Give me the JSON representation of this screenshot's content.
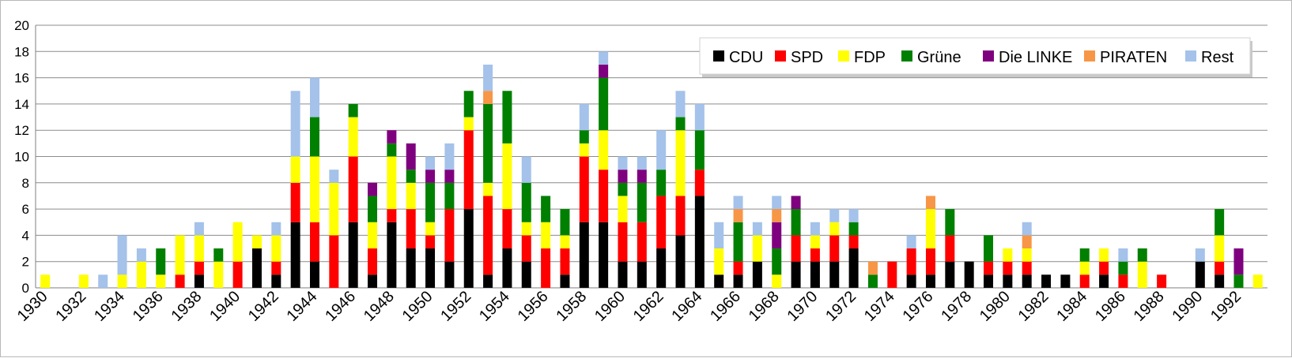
{
  "chart_data": {
    "type": "bar",
    "stacked": true,
    "title": "",
    "xlabel": "",
    "ylabel": "",
    "ylim": [
      0,
      20
    ],
    "yticks": [
      0,
      2,
      4,
      6,
      8,
      10,
      12,
      14,
      16,
      18,
      20
    ],
    "grid": "horizontal",
    "legend_position": "top-right",
    "categories": [
      1930,
      1931,
      1932,
      1933,
      1934,
      1935,
      1936,
      1937,
      1938,
      1939,
      1940,
      1941,
      1942,
      1943,
      1944,
      1945,
      1946,
      1947,
      1948,
      1949,
      1950,
      1951,
      1952,
      1953,
      1954,
      1955,
      1956,
      1957,
      1958,
      1959,
      1960,
      1961,
      1962,
      1963,
      1964,
      1965,
      1966,
      1967,
      1968,
      1969,
      1970,
      1971,
      1972,
      1973,
      1974,
      1975,
      1976,
      1977,
      1978,
      1979,
      1980,
      1981,
      1982,
      1983,
      1984,
      1985,
      1986,
      1987,
      1988,
      1989,
      1990,
      1991,
      1992,
      1993
    ],
    "xtick_labels": [
      "1930",
      "1932",
      "1934",
      "1936",
      "1938",
      "1940",
      "1942",
      "1944",
      "1946",
      "1948",
      "1950",
      "1952",
      "1954",
      "1956",
      "1958",
      "1960",
      "1962",
      "1964",
      "1966",
      "1968",
      "1970",
      "1972",
      "1974",
      "1976",
      "1978",
      "1980",
      "1982",
      "1984",
      "1986",
      "1988",
      "1990",
      "1992"
    ],
    "series": [
      {
        "name": "CDU",
        "color": "#000000",
        "values": [
          0,
          0,
          0,
          0,
          0,
          0,
          0,
          0,
          1,
          0,
          0,
          3,
          1,
          5,
          2,
          0,
          5,
          1,
          5,
          3,
          3,
          2,
          6,
          1,
          3,
          2,
          0,
          1,
          5,
          5,
          2,
          2,
          3,
          4,
          7,
          1,
          1,
          2,
          0,
          2,
          2,
          2,
          3,
          0,
          0,
          1,
          1,
          2,
          2,
          1,
          1,
          1,
          1,
          1,
          0,
          1,
          0,
          0,
          0,
          0,
          2,
          1,
          0,
          0
        ]
      },
      {
        "name": "SPD",
        "color": "#ff0000",
        "values": [
          0,
          0,
          0,
          0,
          0,
          0,
          0,
          1,
          1,
          0,
          2,
          0,
          1,
          3,
          3,
          4,
          5,
          2,
          1,
          3,
          1,
          4,
          6,
          6,
          3,
          2,
          3,
          2,
          5,
          4,
          3,
          3,
          4,
          3,
          2,
          0,
          1,
          0,
          0,
          2,
          1,
          2,
          1,
          0,
          2,
          2,
          2,
          2,
          0,
          1,
          1,
          1,
          0,
          0,
          1,
          1,
          1,
          0,
          1,
          0,
          0,
          1,
          0,
          0
        ]
      },
      {
        "name": "FDP",
        "color": "#ffff00",
        "values": [
          1,
          0,
          1,
          0,
          1,
          2,
          1,
          3,
          2,
          2,
          3,
          1,
          2,
          2,
          5,
          4,
          3,
          2,
          4,
          2,
          1,
          0,
          1,
          1,
          5,
          1,
          2,
          1,
          1,
          3,
          2,
          0,
          0,
          5,
          0,
          2,
          0,
          2,
          1,
          0,
          1,
          1,
          0,
          0,
          0,
          0,
          3,
          0,
          0,
          0,
          1,
          1,
          0,
          0,
          1,
          1,
          0,
          2,
          0,
          0,
          0,
          2,
          0,
          1
        ]
      },
      {
        "name": "Grüne",
        "color": "#008000",
        "values": [
          0,
          0,
          0,
          0,
          0,
          0,
          2,
          0,
          0,
          1,
          0,
          0,
          0,
          0,
          3,
          0,
          1,
          2,
          1,
          1,
          3,
          2,
          2,
          6,
          4,
          3,
          2,
          2,
          1,
          4,
          1,
          3,
          2,
          1,
          3,
          0,
          3,
          0,
          2,
          2,
          0,
          0,
          1,
          1,
          0,
          0,
          0,
          2,
          0,
          2,
          0,
          0,
          0,
          0,
          1,
          0,
          1,
          1,
          0,
          0,
          0,
          2,
          1,
          0
        ]
      },
      {
        "name": "Die LINKE",
        "color": "#7f007f",
        "values": [
          0,
          0,
          0,
          0,
          0,
          0,
          0,
          0,
          0,
          0,
          0,
          0,
          0,
          0,
          0,
          0,
          0,
          1,
          1,
          2,
          1,
          1,
          0,
          0,
          0,
          0,
          0,
          0,
          0,
          1,
          1,
          1,
          0,
          0,
          0,
          0,
          0,
          0,
          2,
          1,
          0,
          0,
          0,
          0,
          0,
          0,
          0,
          0,
          0,
          0,
          0,
          0,
          0,
          0,
          0,
          0,
          0,
          0,
          0,
          0,
          0,
          0,
          2,
          0
        ]
      },
      {
        "name": "PIRATEN",
        "color": "#f79646",
        "values": [
          0,
          0,
          0,
          0,
          0,
          0,
          0,
          0,
          0,
          0,
          0,
          0,
          0,
          0,
          0,
          0,
          0,
          0,
          0,
          0,
          0,
          0,
          0,
          1,
          0,
          0,
          0,
          0,
          0,
          0,
          0,
          0,
          0,
          0,
          0,
          0,
          1,
          0,
          1,
          0,
          0,
          0,
          0,
          1,
          0,
          0,
          1,
          0,
          0,
          0,
          0,
          1,
          0,
          0,
          0,
          0,
          0,
          0,
          0,
          0,
          0,
          0,
          0,
          0
        ]
      },
      {
        "name": "Rest",
        "color": "#a4c2ea",
        "values": [
          0,
          0,
          0,
          1,
          3,
          1,
          0,
          0,
          1,
          0,
          0,
          0,
          1,
          5,
          3,
          1,
          0,
          0,
          0,
          0,
          1,
          2,
          0,
          2,
          0,
          2,
          0,
          0,
          2,
          1,
          1,
          1,
          3,
          2,
          2,
          2,
          1,
          1,
          1,
          0,
          1,
          1,
          1,
          0,
          0,
          1,
          0,
          0,
          0,
          0,
          0,
          1,
          0,
          0,
          0,
          0,
          1,
          0,
          0,
          0,
          1,
          0,
          0,
          0
        ]
      }
    ]
  }
}
